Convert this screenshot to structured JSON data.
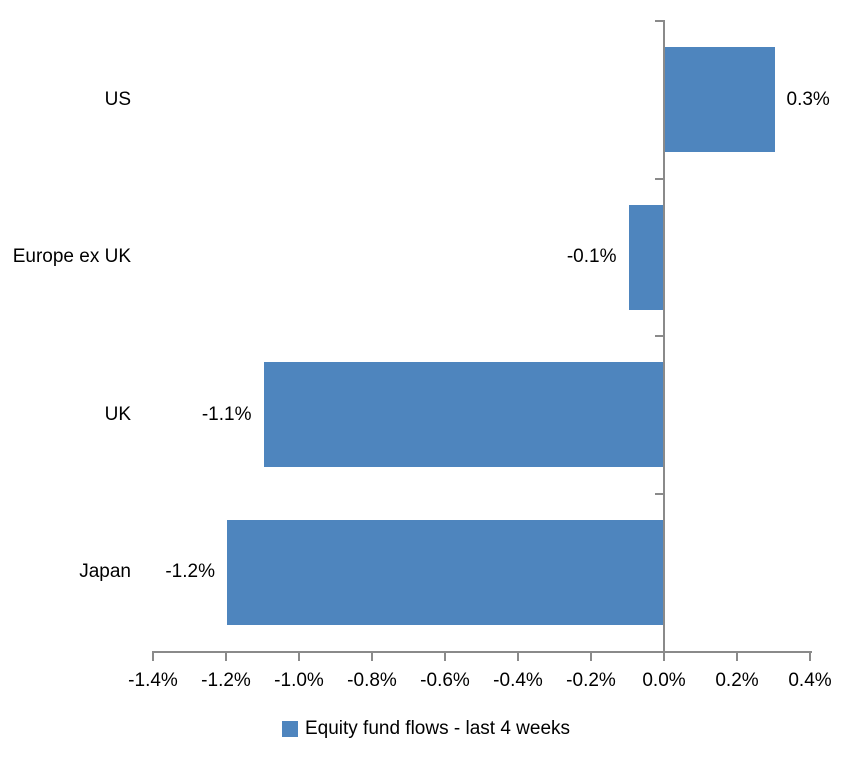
{
  "chart_data": {
    "type": "bar",
    "orientation": "horizontal",
    "title": "",
    "categories": [
      "US",
      "Europe ex UK",
      "UK",
      "Japan"
    ],
    "values": [
      0.3,
      -0.1,
      -1.1,
      -1.2
    ],
    "data_labels": [
      "0.3%",
      "-0.1%",
      "-1.1%",
      "-1.2%"
    ],
    "series": [
      {
        "name": "Equity fund flows - last 4 weeks",
        "values": [
          0.3,
          -0.1,
          -1.1,
          -1.2
        ]
      }
    ],
    "xlabel": "",
    "ylabel": "",
    "x_axis": {
      "min": -1.4,
      "max": 0.4,
      "step": 0.2,
      "tick_labels": [
        "-1.4%",
        "-1.2%",
        "-1.0%",
        "-0.8%",
        "-0.6%",
        "-0.4%",
        "-0.2%",
        "0.0%",
        "0.2%",
        "0.4%"
      ]
    },
    "grid": false,
    "legend": {
      "position": "bottom",
      "entries": [
        {
          "label": "Equity fund flows - last 4 weeks",
          "swatch_color": "#4E85BE"
        }
      ]
    },
    "colors": {
      "bar": "#4E85BE",
      "axis": "#8A8A8A",
      "text": "#000000",
      "background": "#FFFFFF"
    }
  }
}
